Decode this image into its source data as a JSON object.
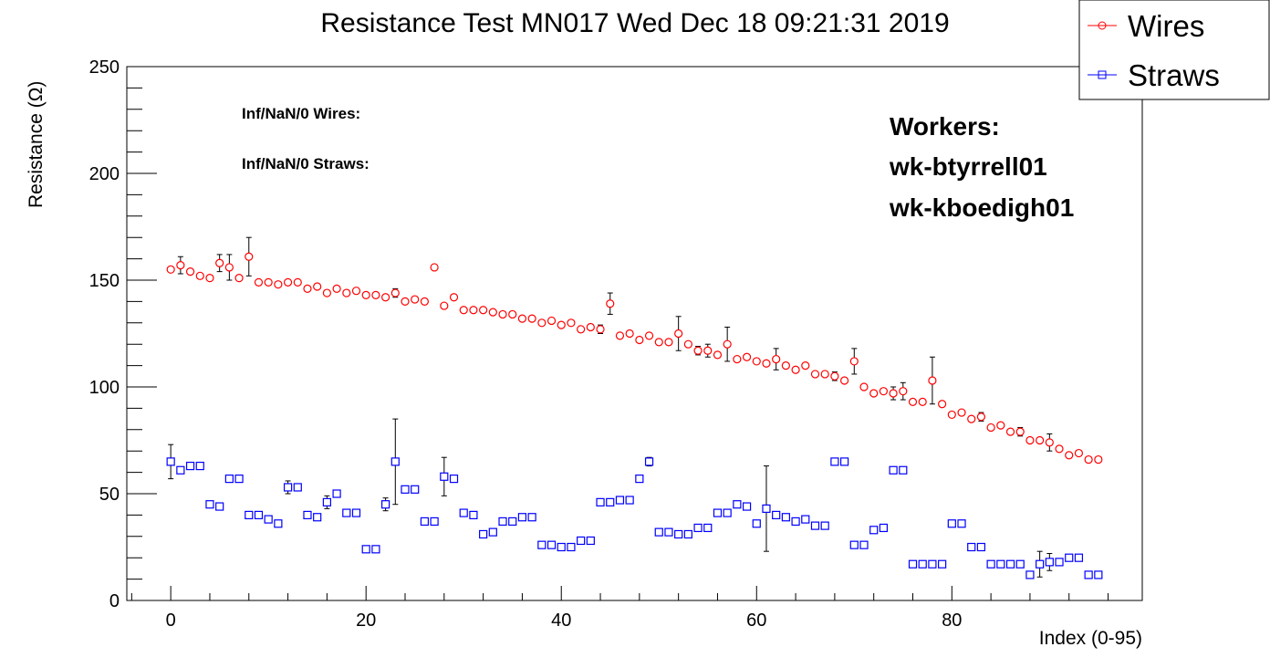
{
  "chart_data": {
    "type": "scatter",
    "title": "Resistance Test MN017 Wed Dec 18 09:21:31 2019",
    "xlabel": "Index (0-95)",
    "ylabel": "Resistance (Ω)",
    "xlim": [
      -4.5,
      99.5
    ],
    "ylim": [
      0,
      250
    ],
    "x_ticks": [
      0,
      20,
      40,
      60,
      80
    ],
    "y_ticks": [
      0,
      50,
      100,
      150,
      200,
      250
    ],
    "grid": false,
    "legend_position": "top-right",
    "annotations": {
      "inf_wires": "Inf/NaN/0 Wires:",
      "inf_straws": "Inf/NaN/0 Straws:",
      "workers_title": "Workers:",
      "workers": [
        "wk-btyrrell01",
        "wk-kboedigh01"
      ]
    },
    "series": [
      {
        "name": "Wires",
        "color": "#ff0000",
        "marker": "open-circle",
        "x": [
          0,
          1,
          2,
          3,
          4,
          5,
          6,
          7,
          8,
          9,
          10,
          11,
          12,
          13,
          14,
          15,
          16,
          17,
          18,
          19,
          20,
          21,
          22,
          23,
          24,
          25,
          26,
          27,
          28,
          29,
          30,
          31,
          32,
          33,
          34,
          35,
          36,
          37,
          38,
          39,
          40,
          41,
          42,
          43,
          44,
          45,
          46,
          47,
          48,
          49,
          50,
          51,
          52,
          53,
          54,
          55,
          56,
          57,
          58,
          59,
          60,
          61,
          62,
          63,
          64,
          65,
          66,
          67,
          68,
          69,
          70,
          71,
          72,
          73,
          74,
          75,
          76,
          77,
          78,
          79,
          80,
          81,
          82,
          83,
          84,
          85,
          86,
          87,
          88,
          89,
          90,
          91,
          92,
          93,
          94,
          95
        ],
        "y": [
          155,
          157,
          154,
          152,
          151,
          158,
          156,
          151,
          161,
          149,
          149,
          148,
          149,
          149,
          146,
          147,
          144,
          146,
          144,
          145,
          143,
          143,
          142,
          144,
          140,
          141,
          140,
          156,
          138,
          142,
          136,
          136,
          136,
          135,
          134,
          134,
          132,
          132,
          130,
          131,
          129,
          130,
          127,
          128,
          127,
          139,
          124,
          125,
          122,
          124,
          121,
          121,
          125,
          120,
          117,
          117,
          115,
          120,
          113,
          114,
          112,
          111,
          113,
          110,
          108,
          110,
          106,
          106,
          105,
          103,
          112,
          100,
          97,
          98,
          97,
          98,
          93,
          93,
          103,
          92,
          87,
          88,
          85,
          86,
          81,
          82,
          79,
          79,
          75,
          75,
          74,
          71,
          68,
          69,
          66,
          66
        ],
        "err": [
          0,
          4,
          0,
          0,
          0,
          4,
          6,
          0,
          9,
          0,
          0,
          0,
          0,
          0,
          0,
          0,
          0,
          0,
          0,
          0,
          0,
          0,
          0,
          2,
          0,
          0,
          0,
          0,
          0,
          0,
          0,
          0,
          0,
          0,
          0,
          0,
          0,
          0,
          0,
          0,
          0,
          0,
          0,
          0,
          2,
          5,
          0,
          0,
          0,
          0,
          0,
          0,
          8,
          0,
          2,
          3,
          0,
          8,
          0,
          0,
          0,
          0,
          5,
          0,
          0,
          0,
          0,
          0,
          2,
          0,
          6,
          0,
          0,
          0,
          3,
          4,
          0,
          0,
          11,
          0,
          0,
          0,
          0,
          2,
          0,
          0,
          0,
          2,
          0,
          0,
          4,
          0,
          0,
          0,
          0,
          0
        ]
      },
      {
        "name": "Straws",
        "color": "#0000ff",
        "marker": "open-square",
        "x": [
          0,
          1,
          2,
          3,
          4,
          5,
          6,
          7,
          8,
          9,
          10,
          11,
          12,
          13,
          14,
          15,
          16,
          17,
          18,
          19,
          20,
          21,
          22,
          23,
          24,
          25,
          26,
          27,
          28,
          29,
          30,
          31,
          32,
          33,
          34,
          35,
          36,
          37,
          38,
          39,
          40,
          41,
          42,
          43,
          44,
          45,
          46,
          47,
          48,
          49,
          50,
          51,
          52,
          53,
          54,
          55,
          56,
          57,
          58,
          59,
          60,
          61,
          62,
          63,
          64,
          65,
          66,
          67,
          68,
          69,
          70,
          71,
          72,
          73,
          74,
          75,
          76,
          77,
          78,
          79,
          80,
          81,
          82,
          83,
          84,
          85,
          86,
          87,
          88,
          89,
          90,
          91,
          92,
          93,
          94,
          95
        ],
        "y": [
          65,
          61,
          63,
          63,
          45,
          44,
          57,
          57,
          40,
          40,
          38,
          36,
          53,
          53,
          40,
          39,
          46,
          50,
          41,
          41,
          24,
          24,
          45,
          65,
          52,
          52,
          37,
          37,
          58,
          57,
          41,
          40,
          31,
          32,
          37,
          37,
          39,
          39,
          26,
          26,
          25,
          25,
          28,
          28,
          46,
          46,
          47,
          47,
          57,
          65,
          32,
          32,
          31,
          31,
          34,
          34,
          41,
          41,
          45,
          44,
          36,
          43,
          40,
          39,
          37,
          38,
          35,
          35,
          65,
          65,
          26,
          26,
          33,
          34,
          61,
          61,
          17,
          17,
          17,
          17,
          36,
          36,
          25,
          25,
          17,
          17,
          17,
          17,
          12,
          17,
          18,
          18,
          20,
          20,
          12,
          12
        ],
        "err": [
          8,
          0,
          0,
          0,
          0,
          0,
          0,
          0,
          0,
          0,
          0,
          0,
          3,
          0,
          0,
          0,
          3,
          0,
          0,
          0,
          0,
          0,
          3,
          20,
          0,
          0,
          0,
          0,
          9,
          0,
          0,
          0,
          0,
          0,
          0,
          0,
          0,
          0,
          0,
          0,
          0,
          0,
          0,
          0,
          0,
          0,
          0,
          0,
          0,
          2,
          0,
          0,
          0,
          0,
          0,
          0,
          0,
          0,
          0,
          0,
          0,
          20,
          0,
          0,
          0,
          0,
          0,
          0,
          0,
          0,
          0,
          0,
          0,
          0,
          0,
          0,
          0,
          0,
          0,
          0,
          0,
          0,
          0,
          0,
          0,
          0,
          0,
          0,
          0,
          6,
          4,
          0,
          0,
          0,
          0,
          0
        ]
      }
    ]
  }
}
